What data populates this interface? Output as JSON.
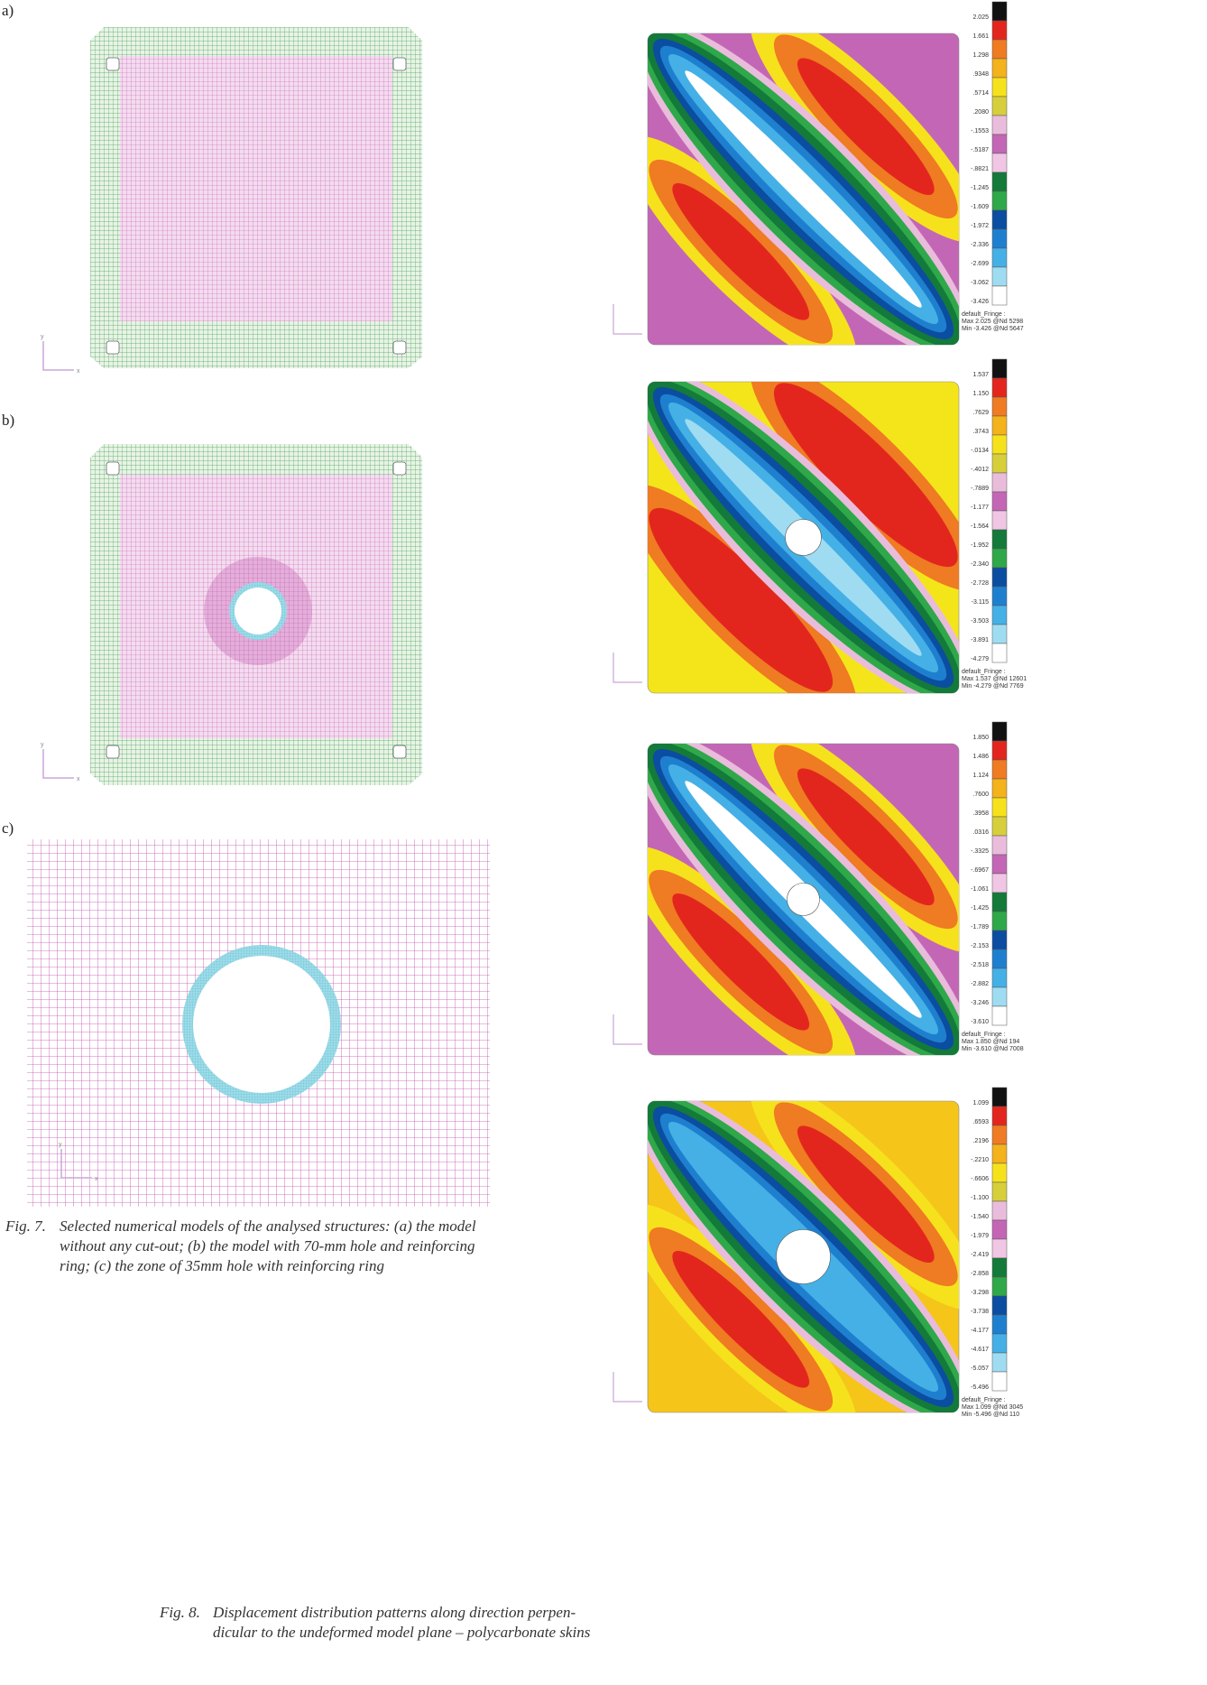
{
  "figure7": {
    "panel_labels": [
      "a)",
      "b)",
      "c)"
    ],
    "axis_labels": [
      "x",
      "y"
    ],
    "caption": {
      "label": "Fig. 7.",
      "lines": [
        "Selected numerical models of the analysed structures: (a) the model",
        "without any cut-out; (b) the model with 70-mm hole and reinforcing",
        "ring; (c) the zone of 35mm hole with reinforcing ring"
      ]
    }
  },
  "figure8": {
    "caption": {
      "label": "Fig. 8.",
      "lines": [
        "Displacement distribution patterns along direction perpen-",
        "dicular to the undeformed model plane – polycarbonate skins"
      ]
    },
    "plots": [
      {
        "legend": [
          "2.025",
          "1.661",
          "1.298",
          ".9348",
          ".5714",
          ".2080",
          "-.1553",
          "-.5187",
          "-.8821",
          "-1.245",
          "-1.609",
          "-1.972",
          "-2.336",
          "-2.699",
          "-3.062",
          "-3.426"
        ],
        "footer": [
          "default_Fringe :",
          "Max 2.025 @Nd 5298",
          "Min -3.426 @Nd 5647"
        ]
      },
      {
        "legend": [
          "1.537",
          "1.150",
          ".7629",
          ".3743",
          "-.0134",
          "-.4012",
          "-.7889",
          "-1.177",
          "-1.564",
          "-1.952",
          "-2.340",
          "-2.728",
          "-3.115",
          "-3.503",
          "-3.891",
          "-4.279"
        ],
        "footer": [
          "default_Fringe :",
          "Max 1.537 @Nd 12601",
          "Min -4.279 @Nd 7769"
        ]
      },
      {
        "legend": [
          "1.850",
          "1.486",
          "1.124",
          ".7600",
          ".3958",
          ".0316",
          "-.3325",
          "-.6967",
          "-1.061",
          "-1.425",
          "-1.789",
          "-2.153",
          "-2.518",
          "-2.882",
          "-3.246",
          "-3.610"
        ],
        "footer": [
          "default_Fringe :",
          "Max 1.850 @Nd 194",
          "Min -3.610 @Nd 7008"
        ]
      },
      {
        "legend": [
          "1.099",
          ".6593",
          ".2196",
          "-.2210",
          "-.6606",
          "-1.100",
          "-1.540",
          "-1.979",
          "-2.419",
          "-2.858",
          "-3.298",
          "-3.738",
          "-4.177",
          "-4.617",
          "-5.057",
          "-5.496"
        ],
        "footer": [
          "default_Fringe :",
          "Max 1.099 @Nd 3045",
          "Min -5.496 @Nd 110"
        ]
      }
    ]
  }
}
